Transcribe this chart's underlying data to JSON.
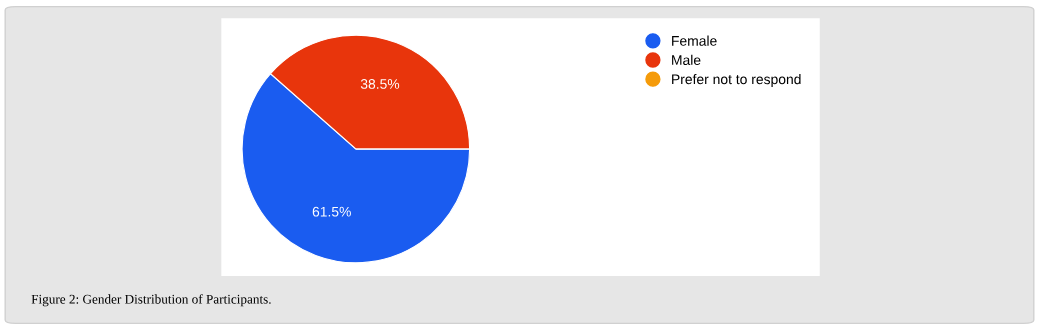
{
  "chart_data": {
    "type": "pie",
    "categories": [
      "Female",
      "Male",
      "Prefer not to respond"
    ],
    "values": [
      61.5,
      38.5,
      0
    ],
    "colors": [
      "#1a5cf0",
      "#e8350c",
      "#f59b0a"
    ],
    "value_labels": [
      "61.5%",
      "38.5%",
      null
    ],
    "legend": "top right",
    "annotations": [
      "Figure 2: Gender Distribution of Participants."
    ]
  }
}
